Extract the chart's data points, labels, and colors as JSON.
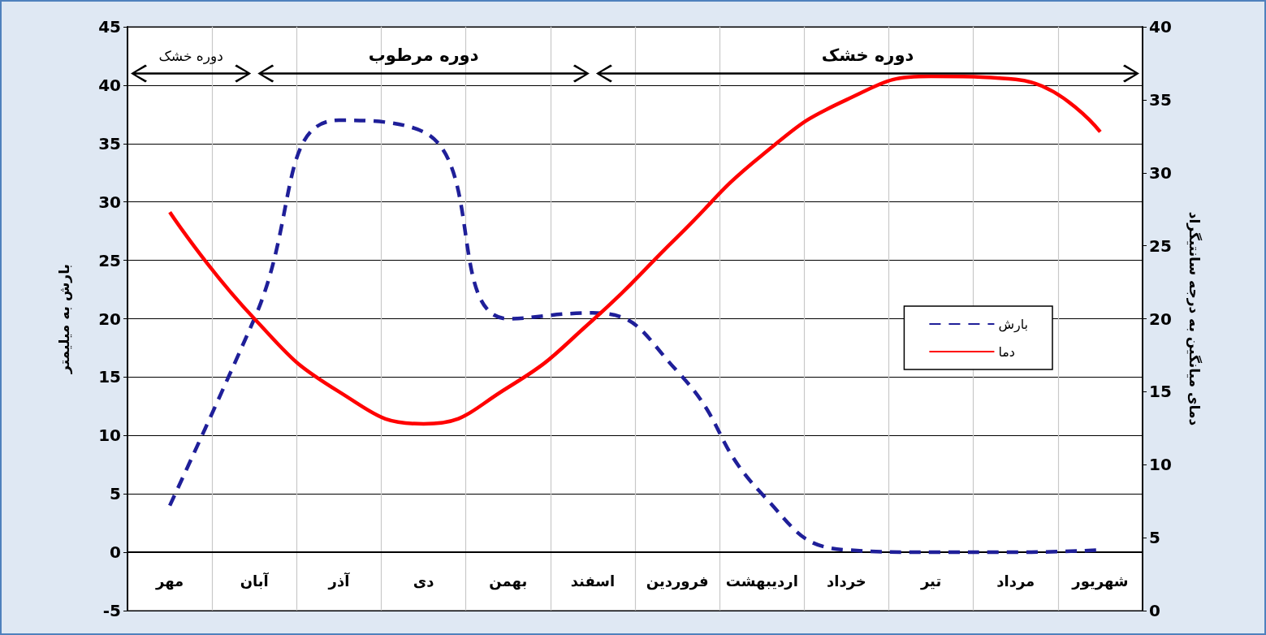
{
  "chart_data": {
    "type": "line",
    "categories": [
      "مهر",
      "آبان",
      "آذر",
      "دی",
      "بهمن",
      "اسفند",
      "فروردین",
      "اردیبهشت",
      "خرداد",
      "تیر",
      "مرداد",
      "شهریور"
    ],
    "series": [
      {
        "name": "بارش",
        "color": "#1f1f99",
        "line_style": "dashed",
        "values": [
          4,
          20,
          37,
          36,
          20,
          20.5,
          15.5,
          5,
          0.2,
          0,
          0,
          0.2
        ]
      },
      {
        "name": "دما",
        "color": "#ff0000",
        "line_style": "solid",
        "axis": "y2",
        "values": [
          27.3,
          20,
          15,
          12.8,
          15.3,
          19.9,
          25.6,
          31.2,
          35,
          36.6,
          36.4,
          32.8
        ]
      }
    ],
    "ylabel": "بارش به میلیمتر",
    "y2label": "دمای میانگین به درجه سانتیگراد",
    "ylim": [
      -5,
      45
    ],
    "yticks": [
      -5,
      0,
      5,
      10,
      15,
      20,
      25,
      30,
      35,
      40,
      45
    ],
    "y2lim": [
      0,
      40
    ],
    "y2ticks": [
      0,
      5,
      10,
      15,
      20,
      25,
      30,
      35,
      40
    ],
    "annotations": [
      "دوره خشک",
      "دوره مرطوب",
      "دوره خشک"
    ],
    "grid": true,
    "legend": "right",
    "marker": "none"
  }
}
